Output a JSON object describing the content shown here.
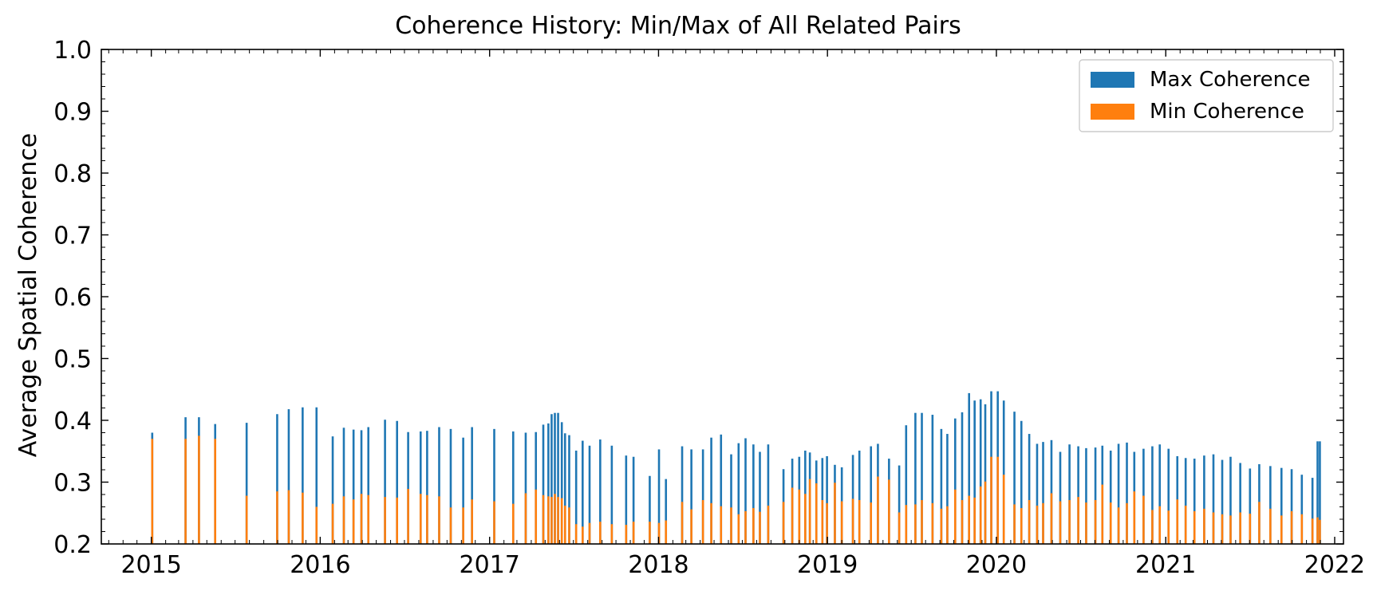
{
  "chart_data": {
    "type": "bar",
    "title": "Coherence History: Min/Max of All Related Pairs",
    "xlabel": "",
    "ylabel": "Average Spatial Coherence",
    "x_type": "date",
    "xlim": [
      "2014-09-15",
      "2022-01-20"
    ],
    "ylim": [
      0.2,
      1.0
    ],
    "x_ticks": [
      "2015",
      "2016",
      "2017",
      "2018",
      "2019",
      "2020",
      "2021",
      "2022"
    ],
    "y_ticks": [
      "0.2",
      "0.3",
      "0.4",
      "0.5",
      "0.6",
      "0.7",
      "0.8",
      "0.9",
      "1.0"
    ],
    "grid": false,
    "legend_position": "top-right",
    "colors": {
      "max": "#1f77b4",
      "min": "#ff7f0e"
    },
    "series": [
      {
        "name": "Max Coherence",
        "color": "#1f77b4",
        "points": [
          [
            "2015-01-03",
            0.38
          ],
          [
            "2015-03-16",
            0.405
          ],
          [
            "2015-04-14",
            0.405
          ],
          [
            "2015-05-19",
            0.394
          ],
          [
            "2015-07-26",
            0.396
          ],
          [
            "2015-09-30",
            0.41
          ],
          [
            "2015-10-25",
            0.418
          ],
          [
            "2015-11-24",
            0.421
          ],
          [
            "2015-12-24",
            0.421
          ],
          [
            "2016-01-28",
            0.374
          ],
          [
            "2016-02-21",
            0.388
          ],
          [
            "2016-03-13",
            0.385
          ],
          [
            "2016-03-30",
            0.384
          ],
          [
            "2016-04-14",
            0.389
          ],
          [
            "2016-05-20",
            0.401
          ],
          [
            "2016-06-15",
            0.399
          ],
          [
            "2016-07-09",
            0.381
          ],
          [
            "2016-08-05",
            0.382
          ],
          [
            "2016-08-19",
            0.383
          ],
          [
            "2016-09-14",
            0.389
          ],
          [
            "2016-10-09",
            0.386
          ],
          [
            "2016-11-05",
            0.372
          ],
          [
            "2016-11-24",
            0.389
          ],
          [
            "2017-01-11",
            0.386
          ],
          [
            "2017-02-21",
            0.382
          ],
          [
            "2017-03-20",
            0.38
          ],
          [
            "2017-04-11",
            0.381
          ],
          [
            "2017-04-27",
            0.393
          ],
          [
            "2017-05-08",
            0.395
          ],
          [
            "2017-05-15",
            0.41
          ],
          [
            "2017-05-22",
            0.412
          ],
          [
            "2017-05-29",
            0.412
          ],
          [
            "2017-06-06",
            0.397
          ],
          [
            "2017-06-13",
            0.379
          ],
          [
            "2017-06-22",
            0.376
          ],
          [
            "2017-07-07",
            0.351
          ],
          [
            "2017-07-21",
            0.367
          ],
          [
            "2017-08-05",
            0.359
          ],
          [
            "2017-08-28",
            0.369
          ],
          [
            "2017-09-22",
            0.359
          ],
          [
            "2017-10-23",
            0.343
          ],
          [
            "2017-11-08",
            0.341
          ],
          [
            "2017-12-13",
            0.31
          ],
          [
            "2018-01-02",
            0.353
          ],
          [
            "2018-01-17",
            0.305
          ],
          [
            "2018-02-21",
            0.358
          ],
          [
            "2018-03-13",
            0.353
          ],
          [
            "2018-04-07",
            0.353
          ],
          [
            "2018-04-25",
            0.372
          ],
          [
            "2018-05-16",
            0.377
          ],
          [
            "2018-06-07",
            0.345
          ],
          [
            "2018-06-23",
            0.363
          ],
          [
            "2018-07-08",
            0.371
          ],
          [
            "2018-07-25",
            0.361
          ],
          [
            "2018-08-08",
            0.349
          ],
          [
            "2018-08-26",
            0.361
          ],
          [
            "2018-09-28",
            0.321
          ],
          [
            "2018-10-17",
            0.338
          ],
          [
            "2018-11-01",
            0.341
          ],
          [
            "2018-11-14",
            0.351
          ],
          [
            "2018-11-24",
            0.348
          ],
          [
            "2018-12-08",
            0.335
          ],
          [
            "2018-12-21",
            0.339
          ],
          [
            "2018-12-31",
            0.342
          ],
          [
            "2019-01-17",
            0.328
          ],
          [
            "2019-02-01",
            0.324
          ],
          [
            "2019-02-25",
            0.344
          ],
          [
            "2019-03-11",
            0.351
          ],
          [
            "2019-04-05",
            0.358
          ],
          [
            "2019-04-20",
            0.362
          ],
          [
            "2019-05-14",
            0.338
          ],
          [
            "2019-06-05",
            0.327
          ],
          [
            "2019-06-20",
            0.392
          ],
          [
            "2019-07-10",
            0.412
          ],
          [
            "2019-07-24",
            0.412
          ],
          [
            "2019-08-16",
            0.409
          ],
          [
            "2019-09-04",
            0.386
          ],
          [
            "2019-09-17",
            0.378
          ],
          [
            "2019-10-04",
            0.403
          ],
          [
            "2019-10-19",
            0.413
          ],
          [
            "2019-11-03",
            0.444
          ],
          [
            "2019-11-15",
            0.432
          ],
          [
            "2019-11-28",
            0.434
          ],
          [
            "2019-12-08",
            0.426
          ],
          [
            "2019-12-21",
            0.447
          ],
          [
            "2020-01-04",
            0.447
          ],
          [
            "2020-01-17",
            0.432
          ],
          [
            "2020-02-09",
            0.414
          ],
          [
            "2020-02-24",
            0.399
          ],
          [
            "2020-03-12",
            0.378
          ],
          [
            "2020-03-29",
            0.362
          ],
          [
            "2020-04-11",
            0.365
          ],
          [
            "2020-04-29",
            0.368
          ],
          [
            "2020-05-18",
            0.349
          ],
          [
            "2020-06-07",
            0.361
          ],
          [
            "2020-06-26",
            0.358
          ],
          [
            "2020-07-13",
            0.355
          ],
          [
            "2020-08-02",
            0.356
          ],
          [
            "2020-08-17",
            0.359
          ],
          [
            "2020-09-04",
            0.351
          ],
          [
            "2020-09-21",
            0.362
          ],
          [
            "2020-10-09",
            0.364
          ],
          [
            "2020-10-25",
            0.349
          ],
          [
            "2020-11-14",
            0.354
          ],
          [
            "2020-12-03",
            0.358
          ],
          [
            "2020-12-19",
            0.361
          ],
          [
            "2021-01-07",
            0.354
          ],
          [
            "2021-01-26",
            0.342
          ],
          [
            "2021-02-13",
            0.339
          ],
          [
            "2021-03-04",
            0.338
          ],
          [
            "2021-03-25",
            0.343
          ],
          [
            "2021-04-14",
            0.345
          ],
          [
            "2021-05-03",
            0.336
          ],
          [
            "2021-05-21",
            0.341
          ],
          [
            "2021-06-11",
            0.331
          ],
          [
            "2021-07-02",
            0.322
          ],
          [
            "2021-07-22",
            0.329
          ],
          [
            "2021-08-15",
            0.326
          ],
          [
            "2021-09-08",
            0.323
          ],
          [
            "2021-09-30",
            0.321
          ],
          [
            "2021-10-22",
            0.312
          ],
          [
            "2021-11-14",
            0.307
          ],
          [
            "2021-11-25",
            0.366
          ],
          [
            "2021-11-30",
            0.366
          ]
        ]
      },
      {
        "name": "Min Coherence",
        "color": "#ff7f0e",
        "points": [
          [
            "2015-01-03",
            0.37
          ],
          [
            "2015-03-16",
            0.37
          ],
          [
            "2015-04-14",
            0.375
          ],
          [
            "2015-05-19",
            0.37
          ],
          [
            "2015-07-26",
            0.278
          ],
          [
            "2015-09-30",
            0.285
          ],
          [
            "2015-10-25",
            0.287
          ],
          [
            "2015-11-24",
            0.283
          ],
          [
            "2015-12-24",
            0.26
          ],
          [
            "2016-01-28",
            0.265
          ],
          [
            "2016-02-21",
            0.277
          ],
          [
            "2016-03-13",
            0.272
          ],
          [
            "2016-03-30",
            0.281
          ],
          [
            "2016-04-14",
            0.279
          ],
          [
            "2016-05-20",
            0.276
          ],
          [
            "2016-06-15",
            0.275
          ],
          [
            "2016-07-09",
            0.289
          ],
          [
            "2016-08-05",
            0.281
          ],
          [
            "2016-08-19",
            0.279
          ],
          [
            "2016-09-14",
            0.277
          ],
          [
            "2016-10-09",
            0.259
          ],
          [
            "2016-11-05",
            0.259
          ],
          [
            "2016-11-24",
            0.272
          ],
          [
            "2017-01-11",
            0.269
          ],
          [
            "2017-02-21",
            0.265
          ],
          [
            "2017-03-20",
            0.282
          ],
          [
            "2017-04-11",
            0.288
          ],
          [
            "2017-04-27",
            0.279
          ],
          [
            "2017-05-08",
            0.277
          ],
          [
            "2017-05-15",
            0.276
          ],
          [
            "2017-05-22",
            0.281
          ],
          [
            "2017-05-29",
            0.276
          ],
          [
            "2017-06-06",
            0.274
          ],
          [
            "2017-06-13",
            0.262
          ],
          [
            "2017-06-22",
            0.259
          ],
          [
            "2017-07-07",
            0.232
          ],
          [
            "2017-07-21",
            0.228
          ],
          [
            "2017-08-05",
            0.234
          ],
          [
            "2017-08-28",
            0.236
          ],
          [
            "2017-09-22",
            0.232
          ],
          [
            "2017-10-23",
            0.231
          ],
          [
            "2017-11-08",
            0.236
          ],
          [
            "2017-12-13",
            0.236
          ],
          [
            "2018-01-02",
            0.234
          ],
          [
            "2018-01-17",
            0.238
          ],
          [
            "2018-02-21",
            0.268
          ],
          [
            "2018-03-13",
            0.256
          ],
          [
            "2018-04-07",
            0.271
          ],
          [
            "2018-04-25",
            0.266
          ],
          [
            "2018-05-16",
            0.261
          ],
          [
            "2018-06-07",
            0.259
          ],
          [
            "2018-06-23",
            0.248
          ],
          [
            "2018-07-08",
            0.253
          ],
          [
            "2018-07-25",
            0.258
          ],
          [
            "2018-08-08",
            0.252
          ],
          [
            "2018-08-26",
            0.262
          ],
          [
            "2018-09-28",
            0.268
          ],
          [
            "2018-10-17",
            0.291
          ],
          [
            "2018-11-01",
            0.288
          ],
          [
            "2018-11-14",
            0.281
          ],
          [
            "2018-11-24",
            0.305
          ],
          [
            "2018-12-08",
            0.298
          ],
          [
            "2018-12-21",
            0.271
          ],
          [
            "2018-12-31",
            0.266
          ],
          [
            "2019-01-17",
            0.299
          ],
          [
            "2019-02-01",
            0.269
          ],
          [
            "2019-02-25",
            0.273
          ],
          [
            "2019-03-11",
            0.271
          ],
          [
            "2019-04-05",
            0.267
          ],
          [
            "2019-04-20",
            0.309
          ],
          [
            "2019-05-14",
            0.304
          ],
          [
            "2019-06-05",
            0.251
          ],
          [
            "2019-06-20",
            0.263
          ],
          [
            "2019-07-10",
            0.264
          ],
          [
            "2019-07-24",
            0.271
          ],
          [
            "2019-08-16",
            0.266
          ],
          [
            "2019-09-04",
            0.257
          ],
          [
            "2019-09-17",
            0.261
          ],
          [
            "2019-10-04",
            0.288
          ],
          [
            "2019-10-19",
            0.271
          ],
          [
            "2019-11-03",
            0.278
          ],
          [
            "2019-11-15",
            0.275
          ],
          [
            "2019-11-28",
            0.293
          ],
          [
            "2019-12-08",
            0.301
          ],
          [
            "2019-12-21",
            0.341
          ],
          [
            "2020-01-04",
            0.341
          ],
          [
            "2020-01-17",
            0.312
          ],
          [
            "2020-02-09",
            0.264
          ],
          [
            "2020-02-24",
            0.258
          ],
          [
            "2020-03-12",
            0.271
          ],
          [
            "2020-03-29",
            0.262
          ],
          [
            "2020-04-11",
            0.266
          ],
          [
            "2020-04-29",
            0.282
          ],
          [
            "2020-05-18",
            0.269
          ],
          [
            "2020-06-07",
            0.271
          ],
          [
            "2020-06-26",
            0.276
          ],
          [
            "2020-07-13",
            0.267
          ],
          [
            "2020-08-02",
            0.271
          ],
          [
            "2020-08-17",
            0.296
          ],
          [
            "2020-09-04",
            0.267
          ],
          [
            "2020-09-21",
            0.259
          ],
          [
            "2020-10-09",
            0.266
          ],
          [
            "2020-10-25",
            0.285
          ],
          [
            "2020-11-14",
            0.278
          ],
          [
            "2020-12-03",
            0.255
          ],
          [
            "2020-12-19",
            0.261
          ],
          [
            "2021-01-07",
            0.254
          ],
          [
            "2021-01-26",
            0.272
          ],
          [
            "2021-02-13",
            0.262
          ],
          [
            "2021-03-04",
            0.253
          ],
          [
            "2021-03-25",
            0.257
          ],
          [
            "2021-04-14",
            0.251
          ],
          [
            "2021-05-03",
            0.248
          ],
          [
            "2021-05-21",
            0.246
          ],
          [
            "2021-06-11",
            0.251
          ],
          [
            "2021-07-02",
            0.249
          ],
          [
            "2021-07-22",
            0.268
          ],
          [
            "2021-08-15",
            0.257
          ],
          [
            "2021-09-08",
            0.246
          ],
          [
            "2021-09-30",
            0.253
          ],
          [
            "2021-10-22",
            0.248
          ],
          [
            "2021-11-14",
            0.241
          ],
          [
            "2021-11-25",
            0.243
          ],
          [
            "2021-11-30",
            0.239
          ]
        ]
      }
    ]
  }
}
